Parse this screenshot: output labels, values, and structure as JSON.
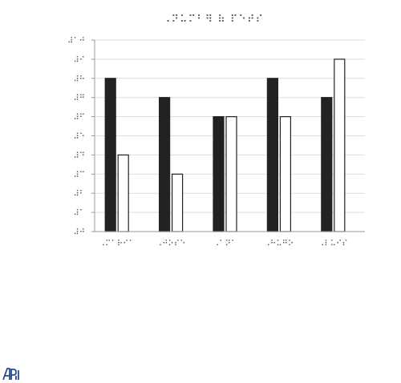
{
  "chart_data": {
    "type": "bar",
    "title": "⠠⠝⠥⠍⠃⠻ ⠷ ⠏⠑⠞⠎",
    "categories": [
      "⠠⠍⠁⠗⠊⠁",
      "⠠⠚⠕⠎⠑",
      "⠠⠁⠝⠁",
      "⠠⠓⠥⠛⠕",
      "⠠⠇⠥⠊⠎"
    ],
    "series": [
      {
        "fill": "#222222",
        "values": [
          8,
          7,
          6,
          8,
          7
        ]
      },
      {
        "fill": "#ffffff",
        "values": [
          4,
          3,
          6,
          6,
          9
        ]
      }
    ],
    "y_ticks": [
      "⠼⠚",
      "⠼⠁",
      "⠼⠃",
      "⠼⠉",
      "⠼⠙",
      "⠼⠑",
      "⠼⠋",
      "⠼⠛",
      "⠼⠓",
      "⠼⠊",
      "⠼⠁⠚"
    ],
    "ylim": [
      0,
      10
    ],
    "grid": true,
    "legend": "none"
  },
  "logo": {
    "icon": "aph-logo-icon"
  }
}
